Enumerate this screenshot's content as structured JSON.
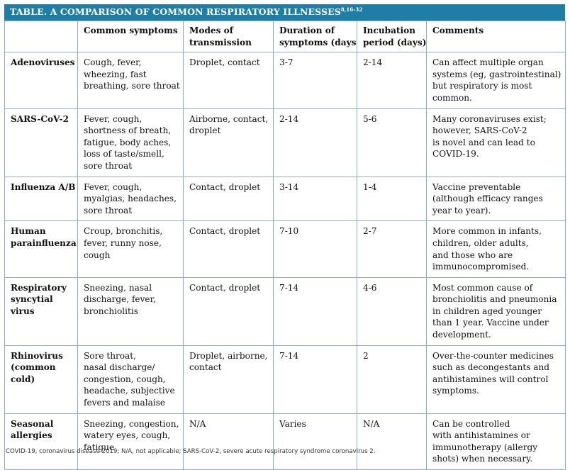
{
  "title": {
    "text": "TABLE. A COMPARISON OF COMMON RESPIRATORY ILLNESSES",
    "refs": "8,16-32"
  },
  "columns": [
    "",
    "Common symptoms",
    "Modes of transmission",
    "Duration of symptoms (days)",
    "Incubation period (days)",
    "Comments"
  ],
  "header_lines": [
    [],
    [
      "Common symptoms"
    ],
    [
      "Modes of",
      "transmission"
    ],
    [
      "Duration of",
      "symptoms (days)"
    ],
    [
      "Incubation",
      "period (days)"
    ],
    [
      "Comments"
    ]
  ],
  "rows": [
    {
      "name": "Adenoviruses",
      "name_lines": [
        "Adenoviruses"
      ],
      "symptoms": [
        "Cough, fever,",
        "wheezing, fast",
        "breathing, sore throat"
      ],
      "transmission": [
        "Droplet, contact"
      ],
      "duration": "3-7",
      "incubation": "2-14",
      "comments": [
        "Can affect multiple organ",
        "systems (eg, gastrointestinal)",
        "but respiratory is most",
        "common."
      ]
    },
    {
      "name": "SARS-CoV-2",
      "name_lines": [
        "SARS-CoV-2"
      ],
      "symptoms": [
        "Fever, cough,",
        "shortness of breath,",
        "fatigue, body aches,",
        "loss of taste/smell,",
        "sore throat"
      ],
      "transmission": [
        "Airborne, contact,",
        "droplet"
      ],
      "duration": "2-14",
      "incubation": "5-6",
      "comments": [
        "Many coronaviruses exist;",
        "however, SARS-CoV-2",
        "is novel and can lead to",
        "COVID-19."
      ]
    },
    {
      "name": "Influenza A/B",
      "name_lines": [
        "Influenza A/B"
      ],
      "symptoms": [
        "Fever, cough,",
        "myalgias, headaches,",
        "sore throat"
      ],
      "transmission": [
        "Contact, droplet"
      ],
      "duration": "3-14",
      "incubation": "1-4",
      "comments": [
        "Vaccine preventable",
        "(although efficacy ranges",
        "year to year)."
      ]
    },
    {
      "name": "Human parainfluenza",
      "name_lines": [
        "Human",
        "parainfluenza"
      ],
      "symptoms": [
        "Croup, bronchitis,",
        "fever, runny nose,",
        "cough"
      ],
      "transmission": [
        "Contact, droplet"
      ],
      "duration": "7-10",
      "incubation": "2-7",
      "comments": [
        "More common in infants,",
        "children, older adults,",
        "and those who are",
        "immunocompromised."
      ]
    },
    {
      "name": "Respiratory syncytial virus",
      "name_lines": [
        "Respiratory",
        "syncytial",
        "virus"
      ],
      "symptoms": [
        "Sneezing, nasal",
        "discharge, fever,",
        "bronchiolitis"
      ],
      "transmission": [
        "Contact, droplet"
      ],
      "duration": "7-14",
      "incubation": "4-6",
      "comments": [
        "Most common cause of",
        "bronchiolitis and pneumonia",
        "in children aged younger",
        "than 1 year. Vaccine under",
        "development."
      ]
    },
    {
      "name": "Rhinovirus (common cold)",
      "name_lines": [
        "Rhinovirus",
        "(common",
        "cold)"
      ],
      "symptoms": [
        "Sore throat,",
        "nasal discharge/",
        "congestion, cough,",
        "headache, subjective",
        "fevers and malaise"
      ],
      "transmission": [
        "Droplet, airborne,",
        "contact"
      ],
      "duration": "7-14",
      "incubation": "2",
      "comments": [
        "Over-the-counter medicines",
        "such as decongestants and",
        "antihistamines will control",
        "symptoms."
      ]
    },
    {
      "name": "Seasonal allergies",
      "name_lines": [
        "Seasonal",
        "allergies"
      ],
      "symptoms": [
        "Sneezing, congestion,",
        "watery eyes, cough,",
        "fatigue"
      ],
      "transmission": [
        "N/A"
      ],
      "duration": "Varies",
      "incubation": "N/A",
      "comments": [
        "Can be controlled",
        "with antihistamines or",
        "immunotherapy (allergy",
        "shots) when necessary."
      ]
    }
  ],
  "footnote": "COVID-19, coronavirus disease 2019; N/A, not applicable; SARS-CoV-2, severe acute respiratory syndrome coronavirus 2.",
  "colors": {
    "title_background": "#1f7ea6",
    "title_text": "#ffffff",
    "grid_line": "#8aaeca"
  }
}
